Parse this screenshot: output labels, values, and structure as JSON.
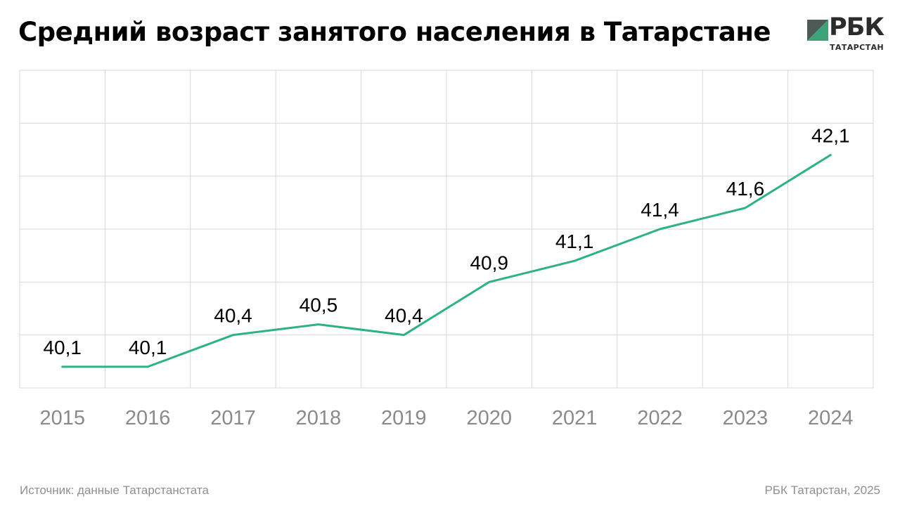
{
  "header": {
    "title": "Средний возраст занятого населения в Татарстане"
  },
  "logo": {
    "brand": "РБК",
    "subtitle": "ТАТАРСТАН",
    "colors": {
      "dark": "#4d5a55",
      "green": "#3fa37a",
      "light": "#b9d8c9"
    }
  },
  "footer": {
    "source": "Источник: данные Татарстанстата",
    "credit": "РБК Татарстан, 2025"
  },
  "chart_data": {
    "type": "line",
    "title": "Средний возраст занятого населения в Татарстане",
    "xlabel": "",
    "ylabel": "",
    "categories": [
      "2015",
      "2016",
      "2017",
      "2018",
      "2019",
      "2020",
      "2021",
      "2022",
      "2023",
      "2024"
    ],
    "series": [
      {
        "values": [
          40.1,
          40.1,
          40.4,
          40.5,
          40.4,
          40.9,
          41.1,
          41.4,
          41.6,
          42.1
        ],
        "labels": [
          "40,1",
          "40,1",
          "40,4",
          "40,5",
          "40,4",
          "40,9",
          "41,1",
          "41,4",
          "41,6",
          "42,1"
        ],
        "color": "#2db37f"
      }
    ],
    "ylim": [
      39.9,
      42.9
    ],
    "grid": true,
    "legend": "none",
    "colors": {
      "grid": "#d9d9d9",
      "tick_label": "#8a8a8a",
      "data_label": "#000000"
    }
  }
}
